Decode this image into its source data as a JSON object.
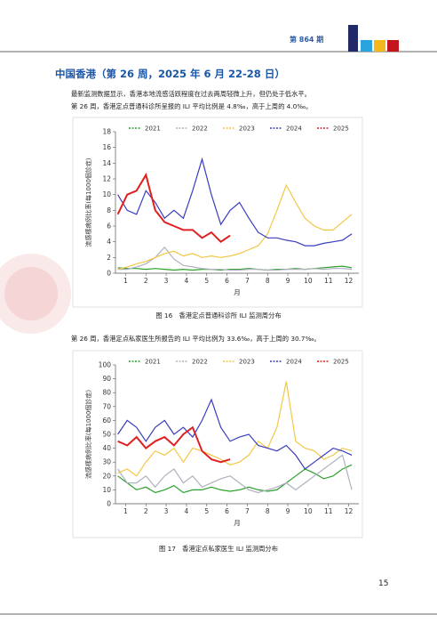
{
  "header": {
    "issue": "第 864 期"
  },
  "title": "中国香港（第 26 周，2025 年 6 月 22-28 日）",
  "paragraphs": [
    "最新监测数据显示，香港本地流感活跃程度在过去两周轻微上升，但仍处于低水平。",
    "第 26 周，香港定点普通科诊所呈报的 ILI 平均比例是 4.8‰，高于上周的 4.0‰。",
    "第 26 周，香港定点私家医生所报告的 ILI 平均比例为 33.6‰，高于上周的 30.7‰。"
  ],
  "captions": [
    "图 16　香港定点普通科诊所 ILI 监测周分布",
    "图 17　香港定点私家医生 ILI 监测周分布"
  ],
  "page_number": "15",
  "chart_data": [
    {
      "type": "line",
      "y_label": "流感樣病例比率(每1000個診症)",
      "x_label": "月",
      "x": [
        1,
        3,
        5,
        7,
        9,
        11,
        13,
        15,
        17,
        19,
        21,
        23,
        25,
        27,
        29,
        31,
        33,
        35,
        37,
        39,
        41,
        43,
        45,
        47,
        49,
        51
      ],
      "xlim": [
        0.5,
        52.5
      ],
      "xticks": [
        {
          "value": 2.67,
          "label": "1"
        },
        {
          "value": 7,
          "label": "2"
        },
        {
          "value": 11.33,
          "label": "3"
        },
        {
          "value": 15.67,
          "label": "4"
        },
        {
          "value": 20,
          "label": "5"
        },
        {
          "value": 24.33,
          "label": "6"
        },
        {
          "value": 28.67,
          "label": "7"
        },
        {
          "value": 33,
          "label": "8"
        },
        {
          "value": 37.33,
          "label": "9"
        },
        {
          "value": 41.67,
          "label": "10"
        },
        {
          "value": 46,
          "label": "11"
        },
        {
          "value": 50.33,
          "label": "12"
        }
      ],
      "ylim": [
        0,
        18
      ],
      "yticks": [
        0,
        2,
        4,
        6,
        8,
        10,
        12,
        14,
        16,
        18
      ],
      "series": [
        {
          "name": "2021",
          "color": "#2ca02c",
          "values": [
            0.7,
            0.6,
            0.6,
            0.5,
            0.6,
            0.5,
            0.4,
            0.5,
            0.4,
            0.5,
            0.5,
            0.4,
            0.5,
            0.5,
            0.6,
            0.5,
            0.4,
            0.5,
            0.5,
            0.6,
            0.5,
            0.6,
            0.7,
            0.8,
            0.9,
            0.7
          ]
        },
        {
          "name": "2022",
          "color": "#b0b0c0",
          "values": [
            0.5,
            0.5,
            0.8,
            1.2,
            2.0,
            3.3,
            1.8,
            1.0,
            0.8,
            0.6,
            0.5,
            0.5,
            0.4,
            0.4,
            0.5,
            0.5,
            0.4,
            0.4,
            0.5,
            0.5,
            0.5,
            0.6,
            0.5,
            0.6,
            0.6,
            0.5
          ]
        },
        {
          "name": "2023",
          "color": "#f2c744",
          "values": [
            0.5,
            0.8,
            1.2,
            1.5,
            2.0,
            2.5,
            2.8,
            2.2,
            2.5,
            2.0,
            2.2,
            2.0,
            2.2,
            2.5,
            3.0,
            3.5,
            5.0,
            8.0,
            11.2,
            9.0,
            7.0,
            6.0,
            5.5,
            5.5,
            6.5,
            7.5
          ]
        },
        {
          "name": "2024",
          "color": "#3a3dbf",
          "values": [
            10.0,
            8.0,
            7.5,
            10.5,
            9.0,
            7.0,
            8.0,
            7.0,
            10.5,
            14.5,
            10.0,
            6.2,
            8.0,
            9.0,
            7.0,
            5.2,
            4.5,
            4.5,
            4.2,
            4.0,
            3.5,
            3.5,
            3.8,
            4.0,
            4.2,
            5.0
          ]
        },
        {
          "name": "2025",
          "color": "#e02020",
          "values": [
            7.5,
            10.0,
            10.5,
            12.5,
            8.0,
            6.5,
            6.0,
            5.5,
            5.5,
            4.5,
            5.2,
            4.0,
            4.8,
            null,
            null,
            null,
            null,
            null,
            null,
            null,
            null,
            null,
            null,
            null,
            null,
            null
          ]
        }
      ]
    },
    {
      "type": "line",
      "y_label": "流感樣病例比率(每1000個診症)",
      "x_label": "月",
      "x": [
        1,
        3,
        5,
        7,
        9,
        11,
        13,
        15,
        17,
        19,
        21,
        23,
        25,
        27,
        29,
        31,
        33,
        35,
        37,
        39,
        41,
        43,
        45,
        47,
        49,
        51
      ],
      "xlim": [
        0.5,
        52.5
      ],
      "xticks": [
        {
          "value": 2.67,
          "label": "1"
        },
        {
          "value": 7,
          "label": "2"
        },
        {
          "value": 11.33,
          "label": "3"
        },
        {
          "value": 15.67,
          "label": "4"
        },
        {
          "value": 20,
          "label": "5"
        },
        {
          "value": 24.33,
          "label": "6"
        },
        {
          "value": 28.67,
          "label": "7"
        },
        {
          "value": 33,
          "label": "8"
        },
        {
          "value": 37.33,
          "label": "9"
        },
        {
          "value": 41.67,
          "label": "10"
        },
        {
          "value": 46,
          "label": "11"
        },
        {
          "value": 50.33,
          "label": "12"
        }
      ],
      "ylim": [
        0,
        100
      ],
      "yticks": [
        0,
        10,
        20,
        30,
        40,
        50,
        60,
        70,
        80,
        90,
        100
      ],
      "series": [
        {
          "name": "2021",
          "color": "#2ca02c",
          "values": [
            20,
            15,
            10,
            12,
            8,
            10,
            13,
            8,
            10,
            10,
            12,
            10,
            9,
            10,
            12,
            10,
            9,
            10,
            15,
            20,
            25,
            22,
            18,
            20,
            25,
            28
          ]
        },
        {
          "name": "2022",
          "color": "#b0b0c0",
          "values": [
            25,
            15,
            15,
            20,
            12,
            20,
            25,
            15,
            20,
            12,
            15,
            18,
            20,
            15,
            10,
            8,
            10,
            12,
            15,
            10,
            15,
            20,
            25,
            30,
            35,
            10
          ]
        },
        {
          "name": "2023",
          "color": "#f2c744",
          "values": [
            22,
            25,
            20,
            30,
            38,
            35,
            40,
            30,
            40,
            38,
            35,
            32,
            28,
            30,
            35,
            45,
            40,
            55,
            88,
            45,
            40,
            38,
            32,
            35,
            40,
            38
          ]
        },
        {
          "name": "2024",
          "color": "#3a3dbf",
          "values": [
            50,
            60,
            55,
            45,
            55,
            60,
            50,
            55,
            48,
            60,
            75,
            55,
            45,
            48,
            50,
            42,
            40,
            38,
            42,
            35,
            25,
            30,
            35,
            40,
            38,
            35
          ]
        },
        {
          "name": "2025",
          "color": "#e02020",
          "values": [
            45,
            42,
            48,
            40,
            45,
            48,
            42,
            50,
            55,
            38,
            32,
            30,
            32,
            null,
            null,
            null,
            null,
            null,
            null,
            null,
            null,
            null,
            null,
            null,
            null,
            null
          ]
        }
      ]
    }
  ]
}
